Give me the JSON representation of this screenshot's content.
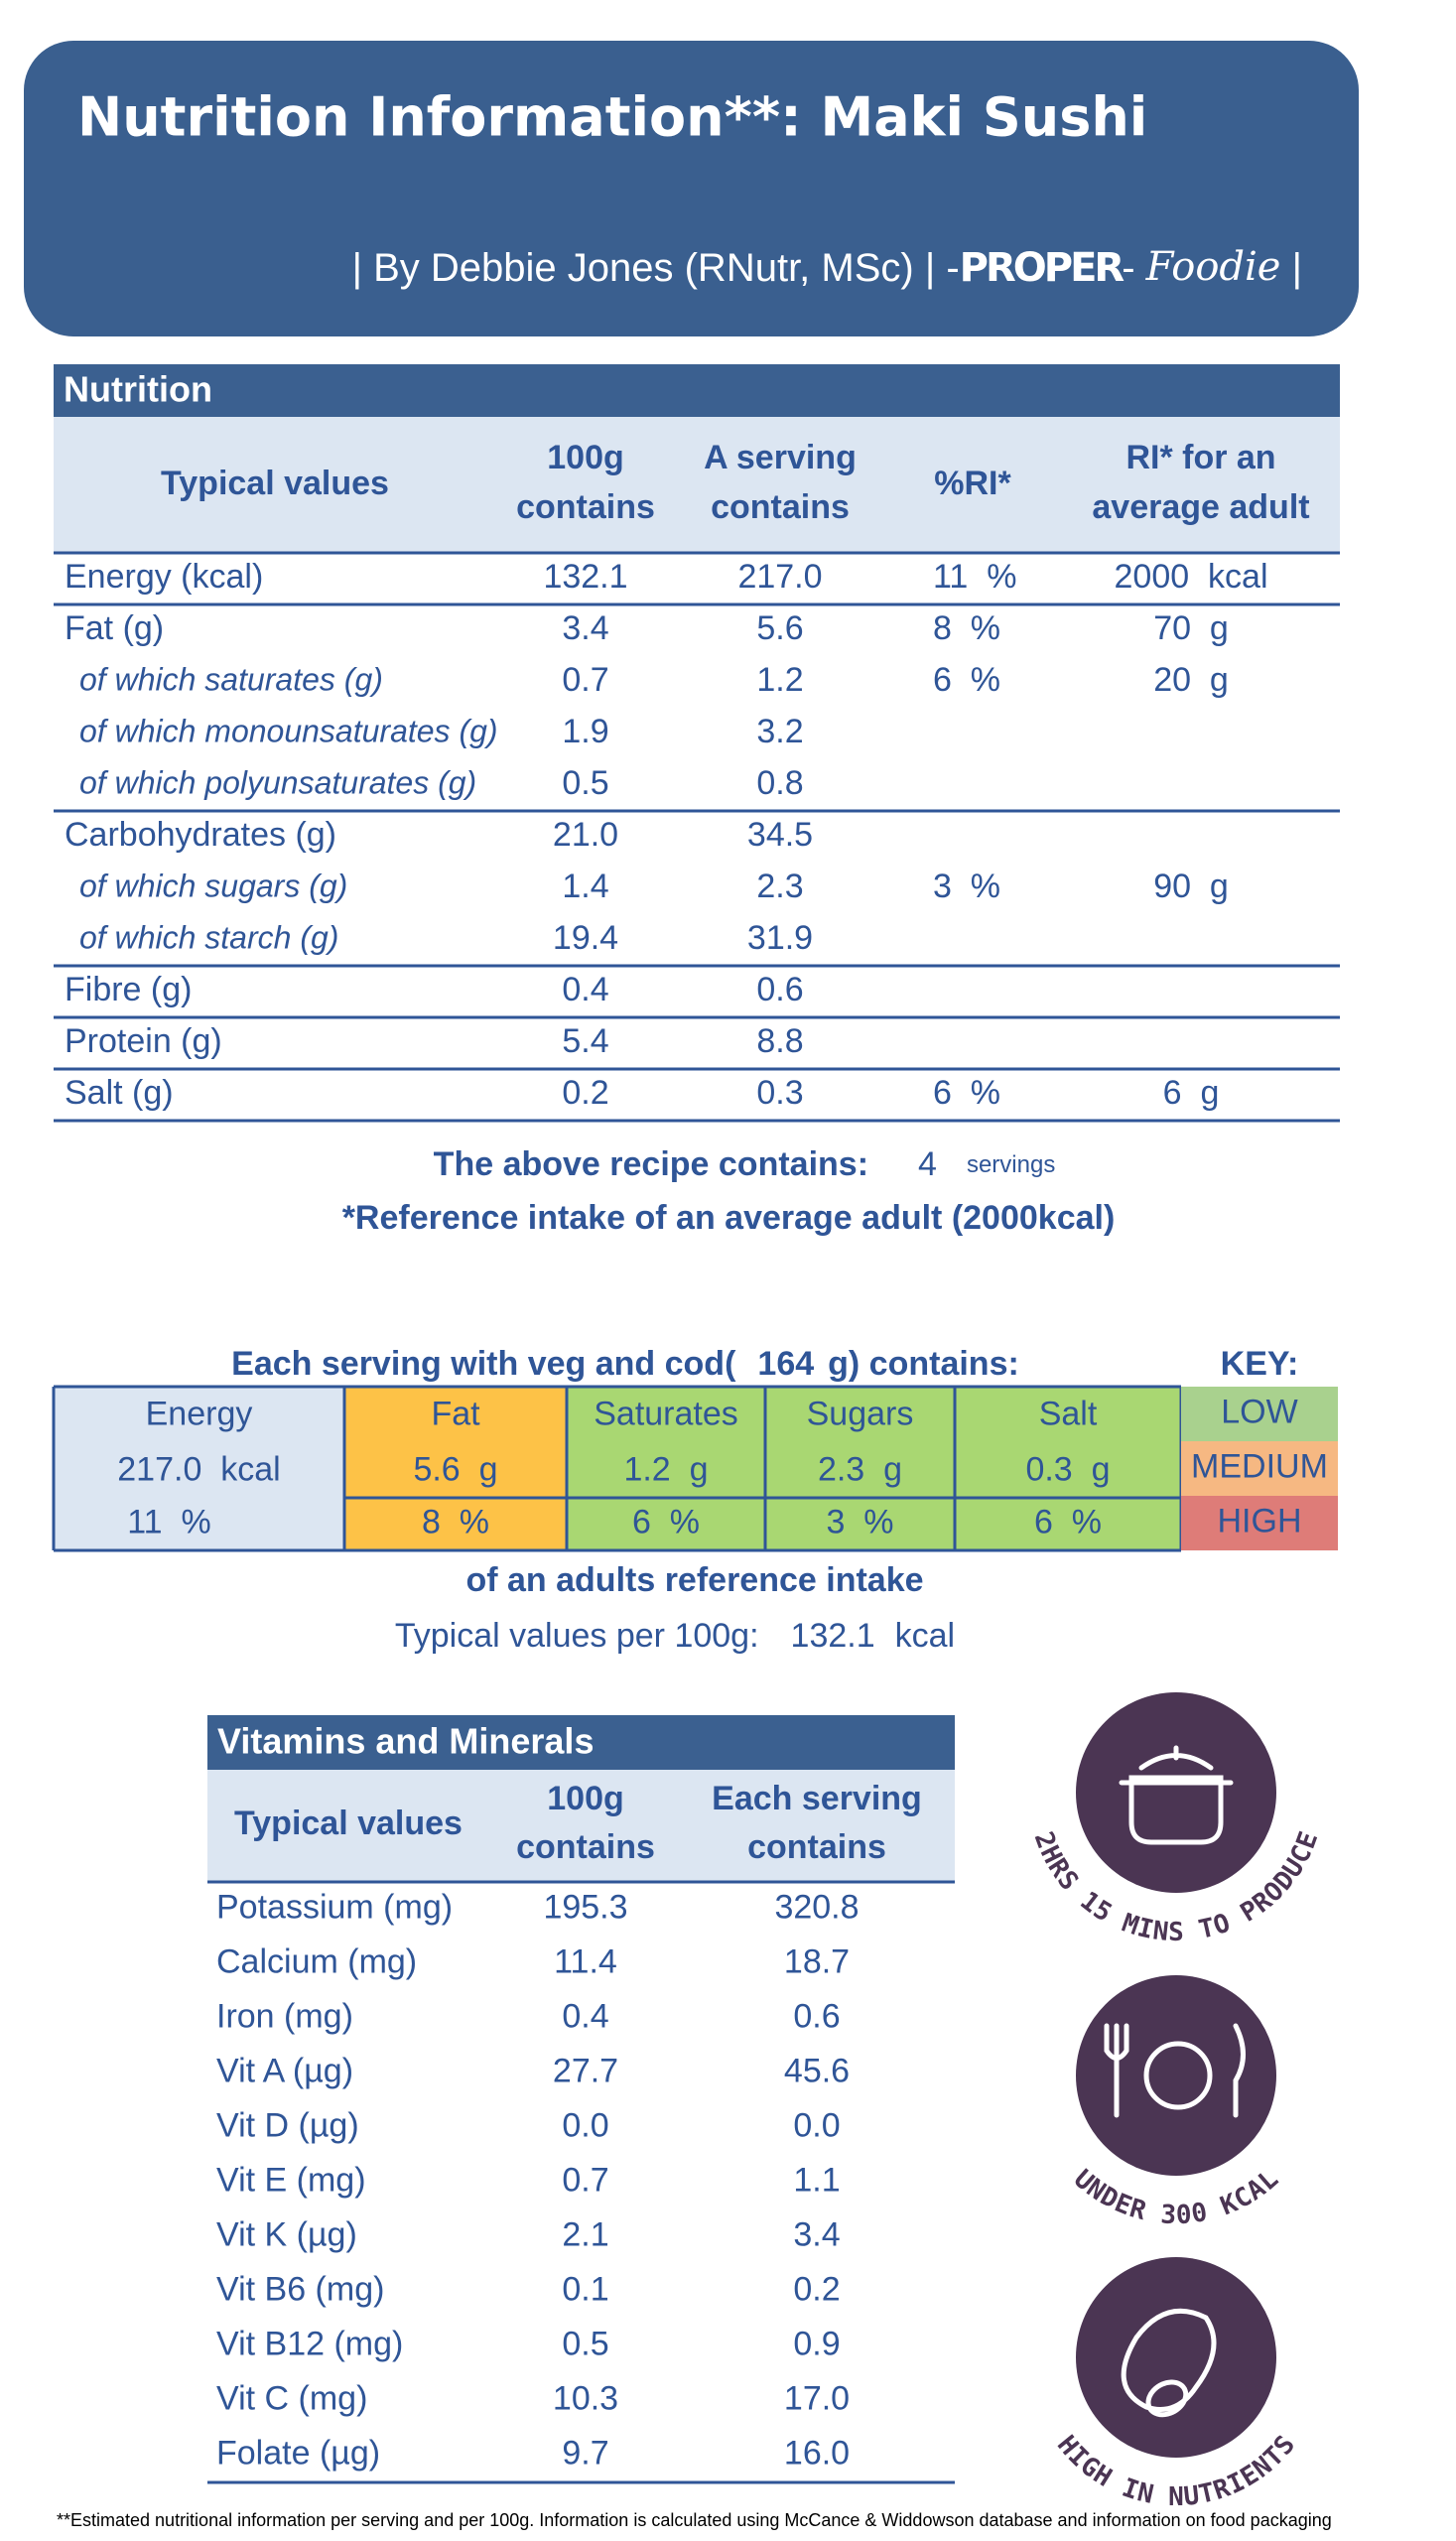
{
  "header": {
    "title": "Nutrition Information**: Maki Sushi",
    "byline": "| By Debbie Jones (RNutr, MSc) | -",
    "brand": "PROPER",
    "brand_sep": "- ",
    "brand_script": "Foodie",
    "byline_end": " |"
  },
  "nutrition": {
    "title": "Nutrition",
    "columns": [
      [
        "Typical values"
      ],
      [
        "100g",
        "contains"
      ],
      [
        "A serving",
        "contains"
      ],
      [
        "%RI*"
      ],
      [
        "RI* for an",
        "average adult"
      ]
    ],
    "rows": [
      {
        "label": "Energy (kcal)",
        "per_100g": "132.1",
        "per_serving": "217.0",
        "ri_percent": "11  %",
        "ri_adult": "2000  kcal"
      },
      {
        "label": "Fat (g)",
        "per_100g": "3.4",
        "per_serving": "5.6",
        "ri_percent": "8  %",
        "ri_adult": "70  g"
      },
      {
        "label": "of which saturates (g)",
        "sub": true,
        "per_100g": "0.7",
        "per_serving": "1.2",
        "ri_percent": "6  %",
        "ri_adult": "20  g"
      },
      {
        "label": "of which monounsaturates (g)",
        "sub": true,
        "per_100g": "1.9",
        "per_serving": "3.2"
      },
      {
        "label": "of which polyunsaturates (g)",
        "sub": true,
        "per_100g": "0.5",
        "per_serving": "0.8"
      },
      {
        "label": "Carbohydrates (g)",
        "per_100g": "21.0",
        "per_serving": "34.5"
      },
      {
        "label": "of which sugars (g)",
        "sub": true,
        "per_100g": "1.4",
        "per_serving": "2.3",
        "ri_percent": "3  %",
        "ri_adult": "90  g"
      },
      {
        "label": "of which starch (g)",
        "sub": true,
        "per_100g": "19.4",
        "per_serving": "31.9"
      },
      {
        "label": "Fibre (g)",
        "per_100g": "0.4",
        "per_serving": "0.6"
      },
      {
        "label": "Protein (g)",
        "per_100g": "5.4",
        "per_serving": "8.8"
      },
      {
        "label": "Salt (g)",
        "per_100g": "0.2",
        "per_serving": "0.3",
        "ri_percent": "6  %",
        "ri_adult": "6  g"
      }
    ]
  },
  "recipe": {
    "contains_label": "The above recipe contains:",
    "servings": "4",
    "servings_unit": "servings",
    "reference_note": "*Reference intake of an average adult (2000kcal)"
  },
  "traffic": {
    "heading_pre": "Each serving with veg and cod(",
    "weight": "164",
    "heading_post": "g) contains:",
    "key_title": "KEY:",
    "energy": {
      "label": "Energy",
      "amount": "217.0  kcal",
      "percent": "11  %"
    },
    "nutrients": [
      {
        "label": "Fat",
        "amount": "5.6  g",
        "percent": "8  %",
        "color": "#fdc247"
      },
      {
        "label": "Saturates",
        "amount": "1.2  g",
        "percent": "6  %",
        "color": "#a9d772"
      },
      {
        "label": "Sugars",
        "amount": "2.3  g",
        "percent": "3  %",
        "color": "#a9d772"
      },
      {
        "label": "Salt",
        "amount": "0.3  g",
        "percent": "6  %",
        "color": "#a9d772"
      }
    ],
    "key": [
      {
        "label": "LOW",
        "color": "#a9d18e"
      },
      {
        "label": "MEDIUM",
        "color": "#f6b882"
      },
      {
        "label": "HIGH",
        "color": "#de7c78"
      }
    ],
    "note": "of an adults reference intake",
    "per100_label": "Typical values per 100g:",
    "per100_value": "132.1",
    "per100_unit": "kcal"
  },
  "vitamins": {
    "title": "Vitamins and Minerals",
    "columns": [
      [
        "Typical values"
      ],
      [
        "100g",
        "contains"
      ],
      [
        "Each serving",
        "contains"
      ]
    ],
    "rows": [
      [
        "Potassium (mg)",
        "195.3",
        "320.8"
      ],
      [
        "Calcium (mg)",
        "11.4",
        "18.7"
      ],
      [
        "Iron (mg)",
        "0.4",
        "0.6"
      ],
      [
        "Vit A (µg)",
        "27.7",
        "45.6"
      ],
      [
        "Vit D (µg)",
        "0.0",
        "0.0"
      ],
      [
        "Vit E (mg)",
        "0.7",
        "1.1"
      ],
      [
        "Vit K (µg)",
        "2.1",
        "3.4"
      ],
      [
        "Vit B6 (mg)",
        "0.1",
        "0.2"
      ],
      [
        "Vit B12 (mg)",
        "0.5",
        "0.9"
      ],
      [
        "Vit C (mg)",
        "10.3",
        "17.0"
      ],
      [
        "Folate (µg)",
        "9.7",
        "16.0"
      ]
    ]
  },
  "badges": [
    "2HRS 15 MINS TO PRODUCE",
    "UNDER 300 KCAL",
    "HIGH IN NUTRIENTS"
  ],
  "footnote": "**Estimated nutritional information per serving and per 100g. Information is calculated using McCance & Widdowson database and information on food packaging"
}
